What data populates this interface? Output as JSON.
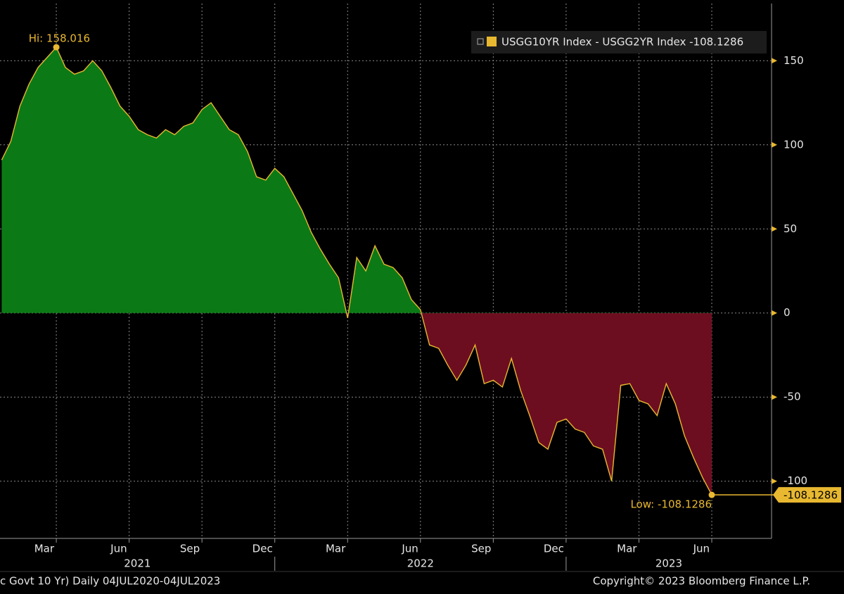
{
  "chart_data": {
    "type": "area",
    "categories": [
      null,
      null,
      null,
      null,
      null,
      null,
      "Mar",
      null,
      null,
      null,
      null,
      null,
      null,
      null,
      "Jun",
      null,
      null,
      null,
      null,
      null,
      null,
      null,
      "Sep",
      null,
      null,
      null,
      null,
      null,
      null,
      null,
      "Dec",
      null,
      null,
      null,
      null,
      null,
      null,
      null,
      "Mar",
      null,
      null,
      null,
      null,
      null,
      null,
      null,
      "Jun",
      null,
      null,
      null,
      null,
      null,
      null,
      null,
      "Sep",
      null,
      null,
      null,
      null,
      null,
      null,
      null,
      "Dec",
      null,
      null,
      null,
      null,
      null,
      null,
      null,
      "Mar",
      null,
      null,
      null,
      null,
      null,
      null,
      null,
      "Jun"
    ],
    "x_group_labels": [
      "2021",
      "2022",
      "2023"
    ],
    "series": [
      {
        "name": "USGG10YR Index - USGG2YR Index -108.1286",
        "color": "#e8b830",
        "values": [
          91,
          102,
          123,
          136,
          146,
          152,
          158.016,
          146,
          142,
          144,
          150,
          144,
          134,
          123,
          117,
          109,
          106,
          104,
          109,
          106,
          111,
          113,
          121,
          125,
          117,
          109,
          106,
          96,
          81,
          79,
          86,
          81,
          71,
          61,
          48,
          38,
          29,
          21,
          -3,
          33,
          25,
          40,
          29,
          27,
          21,
          8,
          2,
          -19,
          -21,
          -31,
          -40,
          -31,
          -19,
          -42,
          -40,
          -44,
          -27,
          -46,
          -61,
          -77,
          -81,
          -65,
          -63,
          -69,
          -71,
          -79,
          -81,
          -100,
          -43,
          -42,
          -52,
          -54,
          -61,
          -42,
          -54,
          -73,
          -86,
          -98,
          -108.1286
        ]
      }
    ],
    "positive_color": "#0b7a16",
    "negative_color": "#6d0e20",
    "ylim": [
      -134,
      184
    ],
    "yticks": [
      150,
      100,
      50,
      0,
      -50,
      -100
    ],
    "grid": true,
    "legend": "top-right",
    "hi_label": "Hi: 158.016",
    "low_label": "Low: -108.1286",
    "last_value_label": "-108.1286",
    "footer_left": "c Govt 10 Yr)  Daily 04JUL2020-04JUL2023",
    "footer_right": "Copyright© 2023 Bloomberg Finance L.P."
  }
}
